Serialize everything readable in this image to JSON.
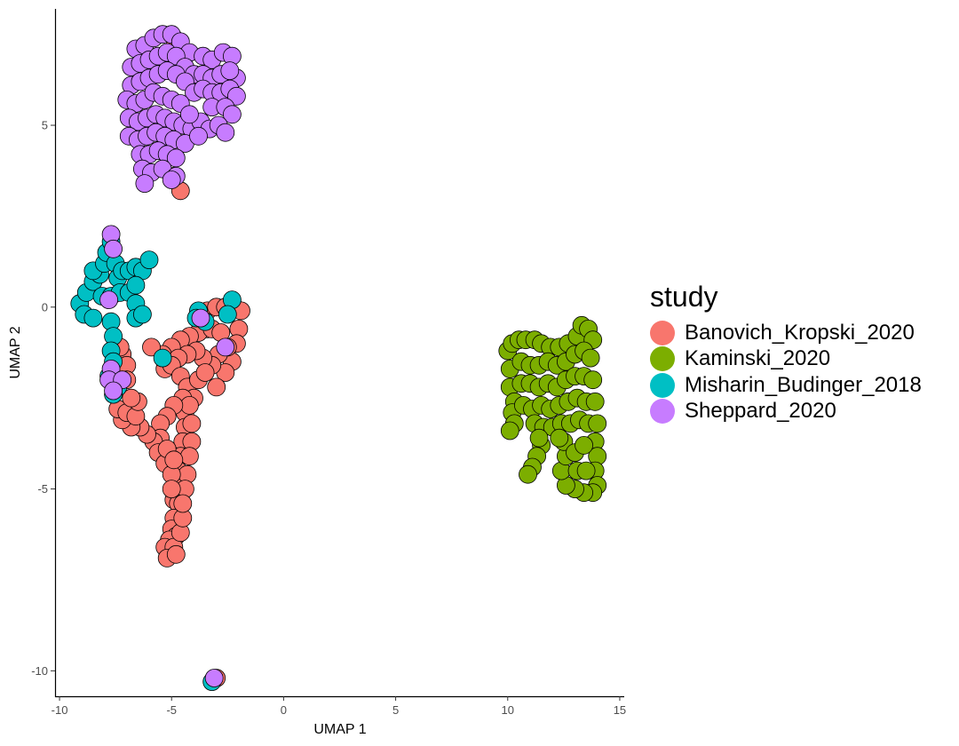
{
  "chart_data": {
    "type": "scatter",
    "title": "",
    "xlabel": "UMAP 1",
    "ylabel": "UMAP 2",
    "xlim": [
      -10.2,
      15.2
    ],
    "ylim": [
      -10.7,
      8.2
    ],
    "x_ticks": [
      -10,
      -5,
      0,
      5,
      10,
      15
    ],
    "x_tick_labels": [
      "-10",
      "-5",
      "0",
      "5",
      "10",
      "15"
    ],
    "y_ticks": [
      -10,
      -5,
      0,
      5
    ],
    "y_tick_labels": [
      "-10",
      "-5",
      "0",
      "5"
    ],
    "grid": false,
    "legend": {
      "title": "study",
      "position": "right"
    },
    "series": [
      {
        "name": "Banovich_Kropski_2020",
        "color": "#F8766D",
        "points": [
          [
            -4.9,
            7.4
          ],
          [
            -4.6,
            3.2
          ],
          [
            -4.9,
            3.6
          ],
          [
            -3.7,
            -0.2
          ],
          [
            -3.4,
            -0.1
          ],
          [
            -3.0,
            0.0
          ],
          [
            -2.6,
            0.0
          ],
          [
            -2.2,
            0.0
          ],
          [
            -1.9,
            -0.1
          ],
          [
            -2.0,
            -0.6
          ],
          [
            -2.1,
            -1.0
          ],
          [
            -2.3,
            -1.5
          ],
          [
            -2.6,
            -1.8
          ],
          [
            -3.0,
            -2.2
          ],
          [
            -3.4,
            -0.6
          ],
          [
            -3.8,
            -0.7
          ],
          [
            -4.2,
            -0.8
          ],
          [
            -4.6,
            -0.9
          ],
          [
            -5.0,
            -1.1
          ],
          [
            -5.4,
            -1.3
          ],
          [
            -5.3,
            -1.7
          ],
          [
            -3.2,
            -0.6
          ],
          [
            -2.8,
            -0.7
          ],
          [
            -2.5,
            -1.1
          ],
          [
            -2.9,
            -1.3
          ],
          [
            -3.2,
            -1.6
          ],
          [
            -3.6,
            -1.4
          ],
          [
            -3.9,
            -1.2
          ],
          [
            -4.3,
            -1.3
          ],
          [
            -4.7,
            -1.4
          ],
          [
            -5.0,
            -1.6
          ],
          [
            -4.6,
            -1.9
          ],
          [
            -4.3,
            -2.2
          ],
          [
            -4.0,
            -2.5
          ],
          [
            -3.8,
            -2.0
          ],
          [
            -3.5,
            -1.8
          ],
          [
            -4.5,
            -2.5
          ],
          [
            -4.4,
            -2.9
          ],
          [
            -4.4,
            -3.3
          ],
          [
            -4.5,
            -3.7
          ],
          [
            -4.6,
            -4.1
          ],
          [
            -4.7,
            -4.5
          ],
          [
            -4.8,
            -4.9
          ],
          [
            -4.9,
            -5.3
          ],
          [
            -4.2,
            -2.7
          ],
          [
            -4.1,
            -3.2
          ],
          [
            -4.1,
            -3.7
          ],
          [
            -4.2,
            -4.1
          ],
          [
            -4.3,
            -4.6
          ],
          [
            -4.4,
            -5.0
          ],
          [
            -4.9,
            -2.7
          ],
          [
            -5.2,
            -3.0
          ],
          [
            -5.5,
            -3.2
          ],
          [
            -5.5,
            -3.6
          ],
          [
            -5.8,
            -3.7
          ],
          [
            -6.1,
            -3.5
          ],
          [
            -6.4,
            -3.3
          ],
          [
            -6.8,
            -3.3
          ],
          [
            -7.2,
            -3.1
          ],
          [
            -7.4,
            -2.8
          ],
          [
            -7.0,
            -2.9
          ],
          [
            -6.6,
            -3.0
          ],
          [
            -6.5,
            -2.6
          ],
          [
            -6.8,
            -2.5
          ],
          [
            -5.6,
            -4.0
          ],
          [
            -5.3,
            -4.3
          ],
          [
            -5.0,
            -4.6
          ],
          [
            -5.2,
            -3.9
          ],
          [
            -4.9,
            -4.2
          ],
          [
            -7.2,
            -1.3
          ],
          [
            -7.0,
            -1.6
          ],
          [
            -7.0,
            -2.0
          ],
          [
            -7.3,
            -1.1
          ],
          [
            -5.9,
            -1.1
          ],
          [
            -4.7,
            -5.4
          ],
          [
            -4.9,
            -5.8
          ],
          [
            -5.0,
            -6.1
          ],
          [
            -4.8,
            -6.3
          ],
          [
            -5.1,
            -6.4
          ],
          [
            -5.3,
            -6.6
          ],
          [
            -4.9,
            -6.6
          ],
          [
            -5.2,
            -6.9
          ],
          [
            -4.8,
            -6.8
          ],
          [
            -4.6,
            -6.2
          ],
          [
            -4.5,
            -5.8
          ],
          [
            -4.5,
            -5.4
          ],
          [
            -5.0,
            -5.0
          ],
          [
            -3.0,
            -10.2
          ]
        ]
      },
      {
        "name": "Kaminski_2020",
        "color": "#7CAE00",
        "points": [
          [
            10.0,
            -1.2
          ],
          [
            10.2,
            -1.0
          ],
          [
            10.5,
            -0.9
          ],
          [
            10.8,
            -0.9
          ],
          [
            11.2,
            -0.9
          ],
          [
            11.5,
            -1.0
          ],
          [
            11.9,
            -1.1
          ],
          [
            12.3,
            -1.1
          ],
          [
            12.7,
            -1.0
          ],
          [
            13.1,
            -0.8
          ],
          [
            13.3,
            -0.5
          ],
          [
            13.6,
            -0.6
          ],
          [
            13.8,
            -0.9
          ],
          [
            10.1,
            -1.7
          ],
          [
            10.1,
            -2.2
          ],
          [
            10.3,
            -2.6
          ],
          [
            10.2,
            -2.9
          ],
          [
            10.3,
            -3.2
          ],
          [
            10.1,
            -3.4
          ],
          [
            10.6,
            -1.5
          ],
          [
            11.0,
            -1.6
          ],
          [
            11.4,
            -1.6
          ],
          [
            11.8,
            -1.5
          ],
          [
            12.2,
            -1.6
          ],
          [
            12.6,
            -1.5
          ],
          [
            13.0,
            -1.3
          ],
          [
            13.4,
            -1.2
          ],
          [
            13.7,
            -1.4
          ],
          [
            10.6,
            -2.1
          ],
          [
            11.0,
            -2.1
          ],
          [
            11.4,
            -2.2
          ],
          [
            11.8,
            -2.1
          ],
          [
            12.2,
            -2.2
          ],
          [
            12.6,
            -2.0
          ],
          [
            13.0,
            -1.9
          ],
          [
            13.4,
            -1.9
          ],
          [
            13.8,
            -2.0
          ],
          [
            10.7,
            -2.7
          ],
          [
            11.1,
            -2.8
          ],
          [
            11.5,
            -2.7
          ],
          [
            11.9,
            -2.8
          ],
          [
            12.3,
            -2.7
          ],
          [
            12.7,
            -2.6
          ],
          [
            13.1,
            -2.5
          ],
          [
            13.5,
            -2.6
          ],
          [
            13.9,
            -2.6
          ],
          [
            11.2,
            -3.2
          ],
          [
            11.6,
            -3.3
          ],
          [
            12.0,
            -3.3
          ],
          [
            12.4,
            -3.2
          ],
          [
            12.8,
            -3.2
          ],
          [
            13.2,
            -3.1
          ],
          [
            13.6,
            -3.2
          ],
          [
            14.0,
            -3.2
          ],
          [
            13.9,
            -3.7
          ],
          [
            14.0,
            -4.1
          ],
          [
            13.9,
            -4.5
          ],
          [
            14.0,
            -4.9
          ],
          [
            13.8,
            -5.1
          ],
          [
            13.4,
            -5.1
          ],
          [
            13.0,
            -5.0
          ],
          [
            12.6,
            -4.9
          ],
          [
            12.4,
            -4.5
          ],
          [
            12.6,
            -4.1
          ],
          [
            12.5,
            -3.7
          ],
          [
            12.3,
            -3.6
          ],
          [
            13.0,
            -4.0
          ],
          [
            13.4,
            -3.8
          ],
          [
            13.1,
            -4.5
          ],
          [
            13.5,
            -4.5
          ],
          [
            11.5,
            -3.8
          ],
          [
            11.3,
            -4.1
          ],
          [
            11.1,
            -4.4
          ],
          [
            10.9,
            -4.6
          ],
          [
            11.4,
            -3.6
          ]
        ]
      },
      {
        "name": "Misharin_Budinger_2018",
        "color": "#00BFC4",
        "points": [
          [
            -9.1,
            0.1
          ],
          [
            -8.8,
            0.4
          ],
          [
            -8.5,
            0.7
          ],
          [
            -8.2,
            0.9
          ],
          [
            -8.5,
            1.0
          ],
          [
            -8.0,
            1.2
          ],
          [
            -7.9,
            1.5
          ],
          [
            -7.7,
            1.8
          ],
          [
            -7.5,
            1.2
          ],
          [
            -7.4,
            0.8
          ],
          [
            -7.2,
            1.0
          ],
          [
            -6.9,
            1.0
          ],
          [
            -6.6,
            1.1
          ],
          [
            -6.3,
            1.0
          ],
          [
            -6.0,
            1.3
          ],
          [
            -8.9,
            -0.2
          ],
          [
            -8.5,
            -0.3
          ],
          [
            -8.1,
            0.3
          ],
          [
            -7.7,
            0.3
          ],
          [
            -7.3,
            0.4
          ],
          [
            -6.9,
            0.4
          ],
          [
            -6.6,
            0.6
          ],
          [
            -6.6,
            0.1
          ],
          [
            -6.6,
            -0.3
          ],
          [
            -6.3,
            -0.2
          ],
          [
            -7.7,
            -0.4
          ],
          [
            -7.6,
            -0.8
          ],
          [
            -7.7,
            -1.2
          ],
          [
            -7.6,
            -1.5
          ],
          [
            -7.8,
            -1.9
          ],
          [
            -7.4,
            -2.2
          ],
          [
            -7.6,
            -2.4
          ],
          [
            -3.8,
            -0.1
          ],
          [
            -3.9,
            -0.3
          ],
          [
            -3.5,
            -0.4
          ],
          [
            -2.3,
            0.2
          ],
          [
            -2.5,
            -0.2
          ],
          [
            -5.4,
            -1.4
          ],
          [
            -3.2,
            -10.3
          ]
        ]
      },
      {
        "name": "Sheppard_2020",
        "color": "#C77CFF",
        "points": [
          [
            -6.6,
            7.1
          ],
          [
            -6.2,
            7.2
          ],
          [
            -5.8,
            7.4
          ],
          [
            -5.4,
            7.5
          ],
          [
            -5.0,
            7.5
          ],
          [
            -4.6,
            7.3
          ],
          [
            -4.2,
            7.0
          ],
          [
            -3.6,
            6.9
          ],
          [
            -3.2,
            6.8
          ],
          [
            -2.7,
            7.0
          ],
          [
            -2.3,
            6.9
          ],
          [
            -2.1,
            6.3
          ],
          [
            -6.8,
            6.6
          ],
          [
            -6.4,
            6.7
          ],
          [
            -6.0,
            6.8
          ],
          [
            -5.6,
            6.9
          ],
          [
            -5.2,
            7.0
          ],
          [
            -4.8,
            6.9
          ],
          [
            -4.4,
            6.6
          ],
          [
            -4.0,
            6.4
          ],
          [
            -3.6,
            6.4
          ],
          [
            -3.2,
            6.3
          ],
          [
            -2.8,
            6.4
          ],
          [
            -2.4,
            6.5
          ],
          [
            -6.8,
            6.1
          ],
          [
            -6.4,
            6.2
          ],
          [
            -6.0,
            6.3
          ],
          [
            -5.6,
            6.4
          ],
          [
            -5.2,
            6.5
          ],
          [
            -4.8,
            6.4
          ],
          [
            -4.4,
            6.2
          ],
          [
            -4.0,
            5.9
          ],
          [
            -3.6,
            6.0
          ],
          [
            -3.2,
            5.9
          ],
          [
            -2.8,
            5.9
          ],
          [
            -2.4,
            6.0
          ],
          [
            -2.1,
            5.8
          ],
          [
            -7.0,
            5.7
          ],
          [
            -6.6,
            5.6
          ],
          [
            -6.2,
            5.7
          ],
          [
            -5.8,
            5.9
          ],
          [
            -5.4,
            5.8
          ],
          [
            -5.0,
            5.7
          ],
          [
            -4.6,
            5.6
          ],
          [
            -3.2,
            5.5
          ],
          [
            -2.6,
            5.5
          ],
          [
            -2.3,
            5.3
          ],
          [
            -6.9,
            5.2
          ],
          [
            -6.5,
            5.1
          ],
          [
            -6.1,
            5.2
          ],
          [
            -5.7,
            5.3
          ],
          [
            -5.3,
            5.2
          ],
          [
            -4.9,
            5.1
          ],
          [
            -4.5,
            5.0
          ],
          [
            -4.1,
            4.9
          ],
          [
            -3.7,
            5.1
          ],
          [
            -3.3,
            4.9
          ],
          [
            -2.9,
            5.0
          ],
          [
            -2.6,
            4.8
          ],
          [
            -6.9,
            4.7
          ],
          [
            -6.5,
            4.6
          ],
          [
            -6.1,
            4.7
          ],
          [
            -5.7,
            4.8
          ],
          [
            -5.3,
            4.7
          ],
          [
            -4.9,
            4.6
          ],
          [
            -4.4,
            4.5
          ],
          [
            -3.8,
            4.7
          ],
          [
            -6.4,
            4.2
          ],
          [
            -6.0,
            4.2
          ],
          [
            -5.6,
            4.3
          ],
          [
            -5.2,
            4.2
          ],
          [
            -4.8,
            4.1
          ],
          [
            -6.3,
            3.8
          ],
          [
            -5.9,
            3.7
          ],
          [
            -6.2,
            3.4
          ],
          [
            -5.4,
            3.8
          ],
          [
            -4.8,
            3.6
          ],
          [
            -5.0,
            3.5
          ],
          [
            -4.2,
            5.3
          ],
          [
            -7.7,
            2.0
          ],
          [
            -7.6,
            1.6
          ],
          [
            -7.8,
            0.2
          ],
          [
            -3.7,
            -0.3
          ],
          [
            -2.6,
            -1.1
          ],
          [
            -7.7,
            -1.7
          ],
          [
            -7.8,
            -2.0
          ],
          [
            -7.2,
            -2.0
          ],
          [
            -7.6,
            -2.3
          ],
          [
            -3.1,
            -10.2
          ]
        ]
      }
    ]
  }
}
